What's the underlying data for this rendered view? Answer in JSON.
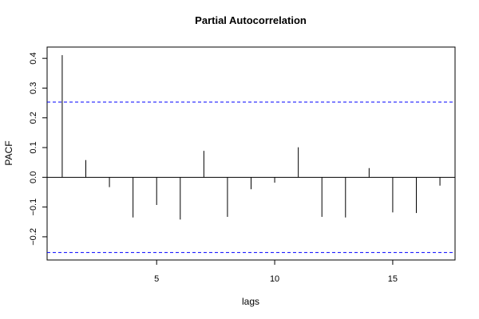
{
  "chart_data": {
    "type": "bar",
    "title": "Partial Autocorrelation",
    "xlabel": "lags",
    "ylabel": "PACF",
    "x": [
      1,
      2,
      3,
      4,
      5,
      6,
      7,
      8,
      9,
      10,
      11,
      12,
      13,
      14,
      15,
      16,
      17
    ],
    "values": [
      0.411,
      0.058,
      -0.033,
      -0.135,
      -0.093,
      -0.142,
      0.089,
      -0.133,
      -0.04,
      -0.018,
      0.101,
      -0.133,
      -0.135,
      0.031,
      -0.118,
      -0.12,
      -0.028
    ],
    "xlim": [
      0.36,
      17.64
    ],
    "ylim": [
      -0.278,
      0.438
    ],
    "x_ticks": [
      5,
      10,
      15
    ],
    "y_ticks": [
      -0.2,
      -0.1,
      0.0,
      0.1,
      0.2,
      0.3,
      0.4
    ],
    "y_tick_labels": [
      "−0.2",
      "−0.1",
      "0.0",
      "0.1",
      "0.2",
      "0.3",
      "0.4"
    ],
    "confidence_bounds": [
      0.253,
      -0.253
    ],
    "colors": {
      "bars": "#000000",
      "bounds": "#0000ff",
      "axes": "#000000"
    },
    "grid": false
  }
}
